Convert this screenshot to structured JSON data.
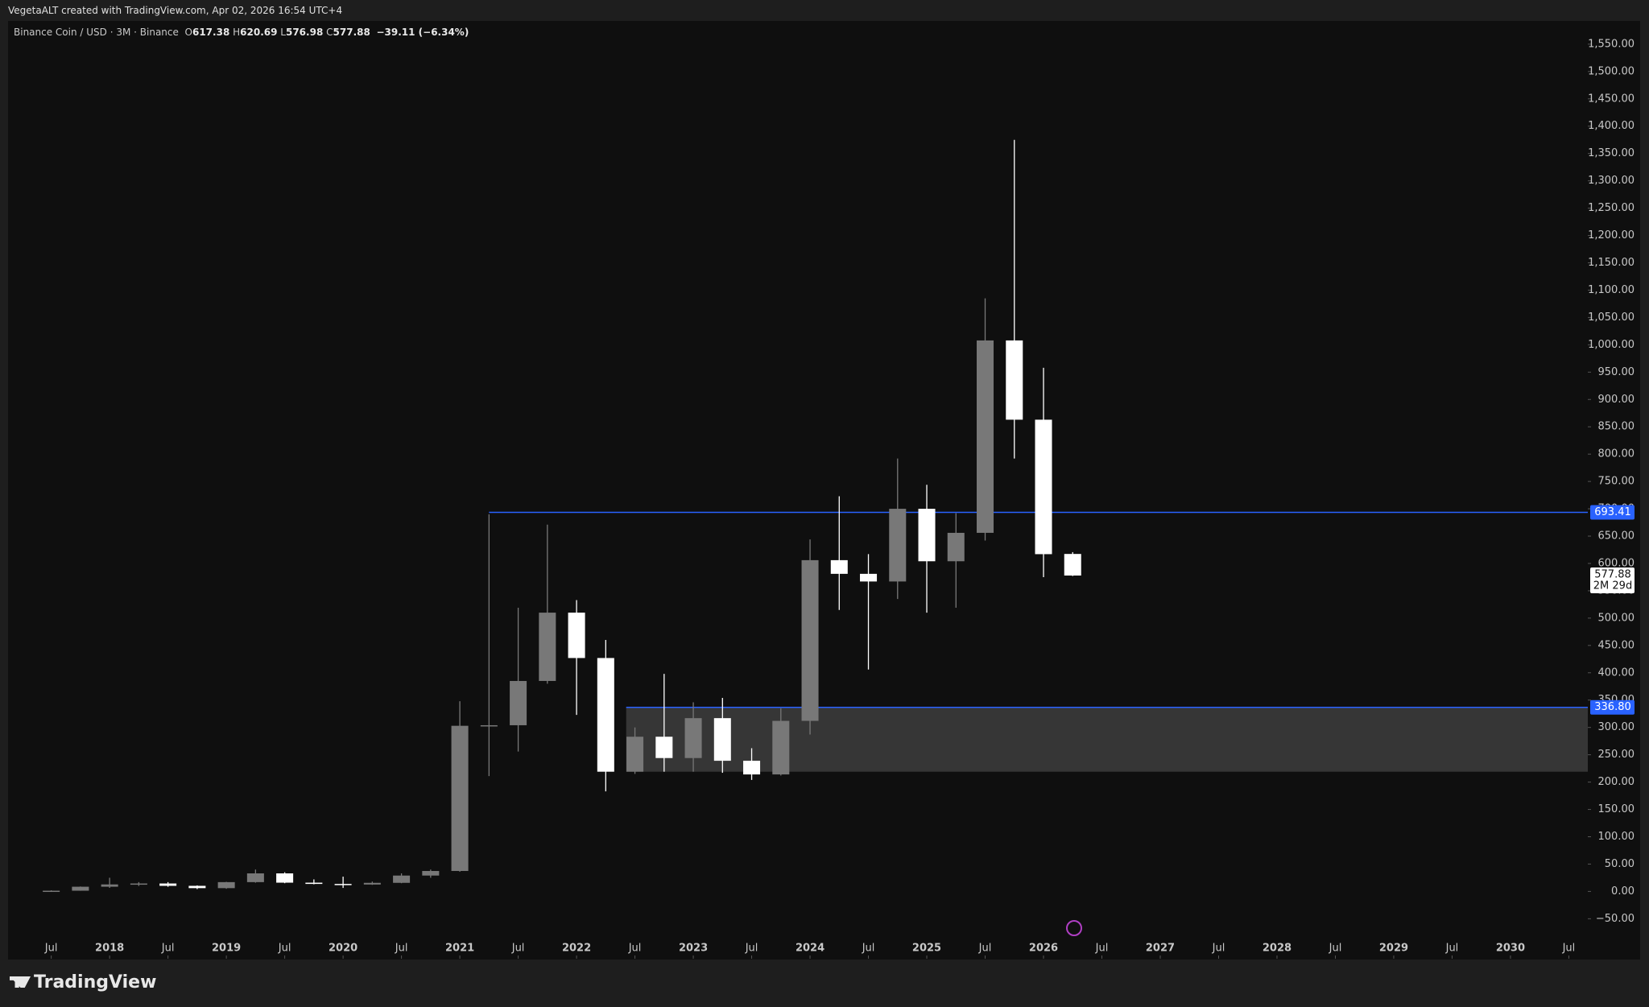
{
  "header": {
    "watermark": "VegetaALT created with TradingView.com, Apr 02, 2026 16:54 UTC+4",
    "symbol": "Binance Coin / USD · 3M · Binance",
    "ohlc": [
      {
        "label": "O",
        "value": "617.38"
      },
      {
        "label": "H",
        "value": "620.69"
      },
      {
        "label": "L",
        "value": "576.98"
      },
      {
        "label": "C",
        "value": "577.88"
      }
    ],
    "change": "−39.11 (−6.34%)"
  },
  "footer": {
    "brand": "TradingView"
  },
  "chart_data": {
    "type": "candlestick",
    "up_color": "#787878",
    "down_color": "#ffffff",
    "open": [
      0.1,
      1.3,
      8.6,
      12.8,
      14.5,
      10.2,
      6,
      17,
      33,
      16,
      13.7,
      12.6,
      15.7,
      29,
      37.4,
      303,
      304,
      385,
      510,
      427,
      219,
      283,
      244,
      317,
      239,
      214,
      312,
      606,
      581,
      567,
      700,
      604,
      656,
      1008,
      863,
      617.38
    ],
    "high": [
      2,
      9,
      25,
      17,
      17,
      11,
      17.5,
      40,
      35,
      22,
      27,
      18,
      33,
      40,
      348,
      690,
      519,
      671,
      533,
      460,
      300,
      398,
      346,
      354,
      262,
      335,
      644,
      723,
      617,
      792,
      744,
      692,
      1085,
      1375,
      958,
      620.69
    ],
    "low": [
      0.1,
      1.2,
      6.5,
      10,
      8.5,
      4.2,
      4.8,
      16,
      15,
      13,
      6.4,
      12,
      15,
      25,
      36,
      211,
      256,
      380,
      323,
      183,
      215,
      219,
      219,
      217,
      204,
      212,
      287,
      515,
      406,
      535,
      510,
      519,
      642,
      792,
      575,
      576.98
    ],
    "close": [
      1.3,
      8.6,
      12.8,
      14.5,
      10.2,
      6,
      17,
      33,
      16,
      13.7,
      12.6,
      15.7,
      29,
      37.4,
      303,
      304,
      385,
      510,
      427,
      219,
      283,
      244,
      317,
      239,
      214,
      312,
      606,
      581,
      567,
      700,
      604,
      656,
      1008,
      863,
      617,
      577.88
    ],
    "countdown": "2M 29d",
    "levels": [
      {
        "value": 693.41,
        "label": "693.41",
        "color": "#2962ff"
      },
      {
        "value": 336.8,
        "label": "336.80",
        "color": "#2962ff"
      }
    ],
    "zone": {
      "top": 336.8,
      "bottom": 219,
      "color": "#363636"
    },
    "xlim": [
      -1.48,
      52.65
    ],
    "xticks": [
      {
        "value": 0,
        "label": "Jul"
      },
      {
        "value": 2,
        "label": "2018"
      },
      {
        "value": 4,
        "label": "Jul"
      },
      {
        "value": 6,
        "label": "2019"
      },
      {
        "value": 8,
        "label": "Jul"
      },
      {
        "value": 10,
        "label": "2020"
      },
      {
        "value": 12,
        "label": "Jul"
      },
      {
        "value": 14,
        "label": "2021"
      },
      {
        "value": 16,
        "label": "Jul"
      },
      {
        "value": 18,
        "label": "2022"
      },
      {
        "value": 20,
        "label": "Jul"
      },
      {
        "value": 22,
        "label": "2023"
      },
      {
        "value": 24,
        "label": "Jul"
      },
      {
        "value": 26,
        "label": "2024"
      },
      {
        "value": 28,
        "label": "Jul"
      },
      {
        "value": 30,
        "label": "2025"
      },
      {
        "value": 32,
        "label": "Jul"
      },
      {
        "value": 34,
        "label": "2026"
      },
      {
        "value": 36,
        "label": "Jul"
      },
      {
        "value": 38,
        "label": "2027"
      },
      {
        "value": 40,
        "label": "Jul"
      },
      {
        "value": 42,
        "label": "2028"
      },
      {
        "value": 44,
        "label": "Jul"
      },
      {
        "value": 46,
        "label": "2029"
      },
      {
        "value": 48,
        "label": "Jul"
      },
      {
        "value": 50,
        "label": "2030"
      },
      {
        "value": 52,
        "label": "Jul"
      }
    ],
    "ylim": [
      -123.1,
      1596.2
    ],
    "yticks": [
      {
        "value": -50,
        "label": "−50.00"
      },
      {
        "value": 0,
        "label": "0.00"
      },
      {
        "value": 50,
        "label": "50.00"
      },
      {
        "value": 100,
        "label": "100.00"
      },
      {
        "value": 150,
        "label": "150.00"
      },
      {
        "value": 200,
        "label": "200.00"
      },
      {
        "value": 250,
        "label": "250.00"
      },
      {
        "value": 300,
        "label": "300.00"
      },
      {
        "value": 350,
        "label": "350.00"
      },
      {
        "value": 400,
        "label": "400.00"
      },
      {
        "value": 450,
        "label": "450.00"
      },
      {
        "value": 500,
        "label": "500.00"
      },
      {
        "value": 550,
        "label": "550.00"
      },
      {
        "value": 600,
        "label": "600.00"
      },
      {
        "value": 650,
        "label": "650.00"
      },
      {
        "value": 700,
        "label": "700.00"
      },
      {
        "value": 750,
        "label": "750.00"
      },
      {
        "value": 800,
        "label": "800.00"
      },
      {
        "value": 850,
        "label": "850.00"
      },
      {
        "value": 900,
        "label": "900.00"
      },
      {
        "value": 950,
        "label": "950.00"
      },
      {
        "value": 1000,
        "label": "1,000.00"
      },
      {
        "value": 1050,
        "label": "1,050.00"
      },
      {
        "value": 1100,
        "label": "1,100.00"
      },
      {
        "value": 1150,
        "label": "1,150.00"
      },
      {
        "value": 1200,
        "label": "1,200.00"
      },
      {
        "value": 1250,
        "label": "1,250.00"
      },
      {
        "value": 1300,
        "label": "1,300.00"
      },
      {
        "value": 1350,
        "label": "1,350.00"
      },
      {
        "value": 1400,
        "label": "1,400.00"
      },
      {
        "value": 1450,
        "label": "1,450.00"
      },
      {
        "value": 1500,
        "label": "1,500.00"
      },
      {
        "value": 1550,
        "label": "1,550.00"
      }
    ]
  }
}
